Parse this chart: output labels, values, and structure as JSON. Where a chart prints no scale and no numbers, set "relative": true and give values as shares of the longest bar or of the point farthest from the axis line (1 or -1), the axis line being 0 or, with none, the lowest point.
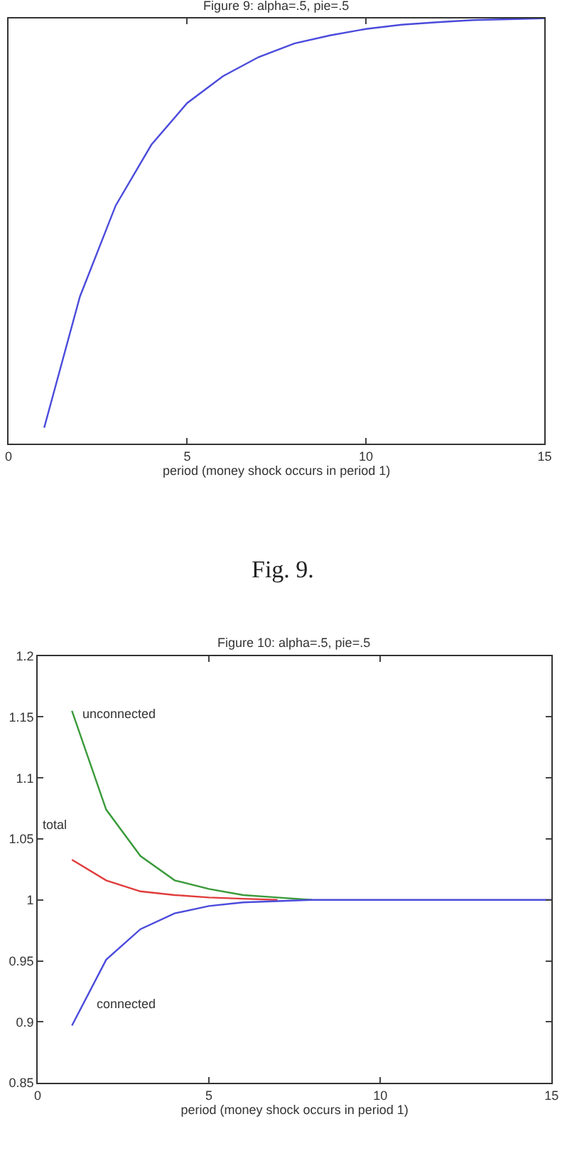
{
  "chart_data": [
    {
      "type": "line",
      "title": "Figure 9: alpha=.5, pie=.5",
      "xlabel": "period (money shock occurs in period 1)",
      "relative": true,
      "x": [
        1,
        2,
        3,
        4,
        5,
        6,
        7,
        8,
        9,
        10,
        11,
        12,
        13,
        14,
        15
      ],
      "xlim": [
        0,
        15
      ],
      "xticks": [
        0,
        5,
        10,
        15
      ],
      "legend": false,
      "series": [
        {
          "color": "#4b4bdc",
          "values": [
            0.038,
            0.346,
            0.56,
            0.703,
            0.801,
            0.864,
            0.909,
            0.941,
            0.96,
            0.975,
            0.985,
            0.991,
            0.996,
            0.998,
            1
          ]
        }
      ],
      "annotations": [
        "Fig. 9."
      ]
    },
    {
      "type": "line",
      "title": "Figure 10: alpha=.5, pie=.5",
      "xlabel": "period (money shock occurs in period 1)",
      "x": [
        1,
        2,
        3,
        4,
        5,
        6,
        7,
        8,
        9,
        10,
        11,
        12,
        13,
        14,
        15
      ],
      "xlim": [
        0,
        15
      ],
      "xticks": [
        0,
        5,
        10,
        15
      ],
      "ylim": [
        0.85,
        1.2
      ],
      "yticks": [
        0.85,
        0.9,
        0.95,
        1,
        1.05,
        1.1,
        1.15,
        1.2
      ],
      "legend": false,
      "series": [
        {
          "name": "unconnected",
          "color": "#3a9a3a",
          "values": [
            1.155,
            1.074,
            1.036,
            1.016,
            1.009,
            1.004,
            1.002,
            1,
            null,
            null,
            null,
            null,
            null,
            null,
            null
          ]
        },
        {
          "name": "total",
          "color": "#e03c3c",
          "values": [
            1.033,
            1.016,
            1.007,
            1.004,
            1.002,
            1.001,
            1,
            null,
            null,
            null,
            null,
            null,
            null,
            null,
            null
          ]
        },
        {
          "name": "connected",
          "color": "#4b4bdc",
          "values": [
            0.897,
            0.951,
            0.976,
            0.989,
            0.995,
            0.998,
            0.999,
            1,
            1,
            1,
            1,
            1,
            1,
            1,
            1
          ]
        }
      ]
    }
  ]
}
